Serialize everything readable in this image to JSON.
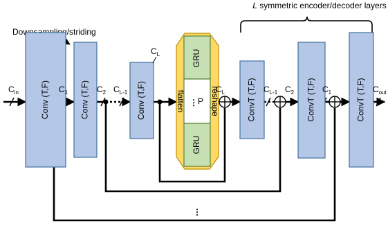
{
  "annotations": {
    "downsampling": "Downsampling/striding",
    "layers_symbol": "L",
    "layers_text": " symmetric encoder/decoder layers"
  },
  "encoder_blocks": [
    {
      "label": "Conv (T,F)"
    },
    {
      "label": "Conv (T,F)"
    },
    {
      "label": "Conv (T,F)"
    }
  ],
  "bottleneck": {
    "gru_top": "GRU",
    "gru_bottom": "GRU",
    "flatten": "flatten",
    "reshape": "reshape",
    "p_label": "P",
    "p_dots": "⋮"
  },
  "decoder_blocks": [
    {
      "label": "ConvT (T,F)"
    },
    {
      "label": "ConvT (T,F)"
    },
    {
      "label": "ConvT (T,F)"
    }
  ],
  "channels": {
    "c_in": {
      "main": "C",
      "sub": "in"
    },
    "c1_enc": {
      "main": "C",
      "sub": "1"
    },
    "c2_enc": {
      "main": "C",
      "sub": "2"
    },
    "cl1_enc": {
      "main": "C",
      "sub": "L-1"
    },
    "cl_top": {
      "main": "C",
      "sub": "L"
    },
    "cl_out": {
      "main": "C",
      "sub": "L"
    },
    "cl1_dec": {
      "main": "C",
      "sub": "L-1"
    },
    "c2_dec": {
      "main": "C",
      "sub": "2"
    },
    "c1_dec": {
      "main": "C",
      "sub": "1"
    },
    "c_out": {
      "main": "C",
      "sub": "out"
    }
  },
  "skip_dots": "⋮"
}
